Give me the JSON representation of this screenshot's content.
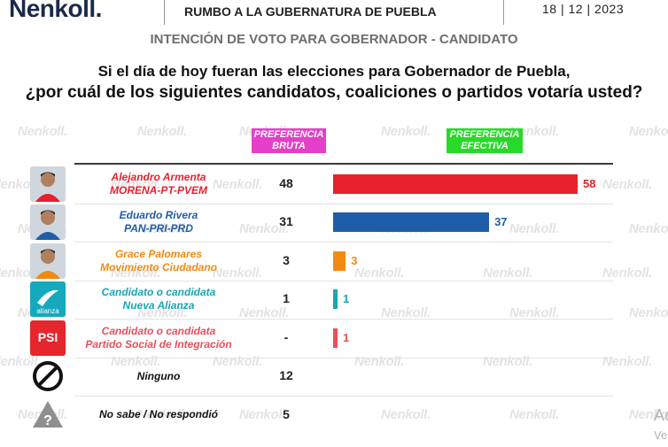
{
  "header": {
    "brand": "enkoll.",
    "title": "RUMBO A LA GUBERNATURA DE PUEBLA",
    "date": "18 | 12 | 2023"
  },
  "subtitle": "INTENCIÓN DE VOTO PARA GOBERNADOR - CANDIDATO",
  "question_line1": "Si el día de hoy fueran las elecciones para Gobernador de Puebla,",
  "question_line2": "¿por cuál de los siguientes candidatos, coaliciones o partidos votaría usted?",
  "watermark": "enkoll.",
  "colors": {
    "pink": "#e43fc8",
    "green": "#29d929",
    "morena": "#e8202b",
    "pan": "#1f5da8",
    "mc": "#f28a12",
    "na": "#1aa5b5",
    "psi": "#e8505b"
  },
  "chart_data": {
    "type": "table",
    "columns": [
      "PREFERENCIA BRUTA",
      "PREFERENCIA EFECTIVA"
    ],
    "rows": [
      {
        "candidate": "Alejandro Armenta",
        "party": "MORENA-PT-PVEM",
        "bruta": "48",
        "efectiva": 58,
        "efectiva_label": "58",
        "color": "#e8202b",
        "icon": "person-photo"
      },
      {
        "candidate": "Eduardo Rivera",
        "party": "PAN-PRI-PRD",
        "bruta": "31",
        "efectiva": 37,
        "efectiva_label": "37",
        "color": "#1f5da8",
        "icon": "person-photo"
      },
      {
        "candidate": "Grace Palomares",
        "party": "Movimiento Ciudadano",
        "bruta": "3",
        "efectiva": 3,
        "efectiva_label": "3",
        "color": "#f28a12",
        "icon": "person-photo"
      },
      {
        "candidate": "Candidato o candidata",
        "party": "Nueva Alianza",
        "bruta": "1",
        "efectiva": 1,
        "efectiva_label": "1",
        "color": "#1aa5b5",
        "icon": "nueva-alianza-logo"
      },
      {
        "candidate": "Candidato o candidata",
        "party": "Partido Social de Integración",
        "bruta": "-",
        "efectiva": 1,
        "efectiva_label": "1",
        "color": "#e8505b",
        "icon": "psi-logo"
      },
      {
        "candidate": "Ninguno",
        "party": "",
        "bruta": "12",
        "efectiva": null,
        "efectiva_label": "",
        "color": "#111111",
        "icon": "prohibited-icon"
      },
      {
        "candidate": "No sabe / No respondió",
        "party": "",
        "bruta": "5",
        "efectiva": null,
        "efectiva_label": "",
        "color": "#111111",
        "icon": "question-icon"
      }
    ],
    "xlim": [
      0,
      58
    ]
  }
}
